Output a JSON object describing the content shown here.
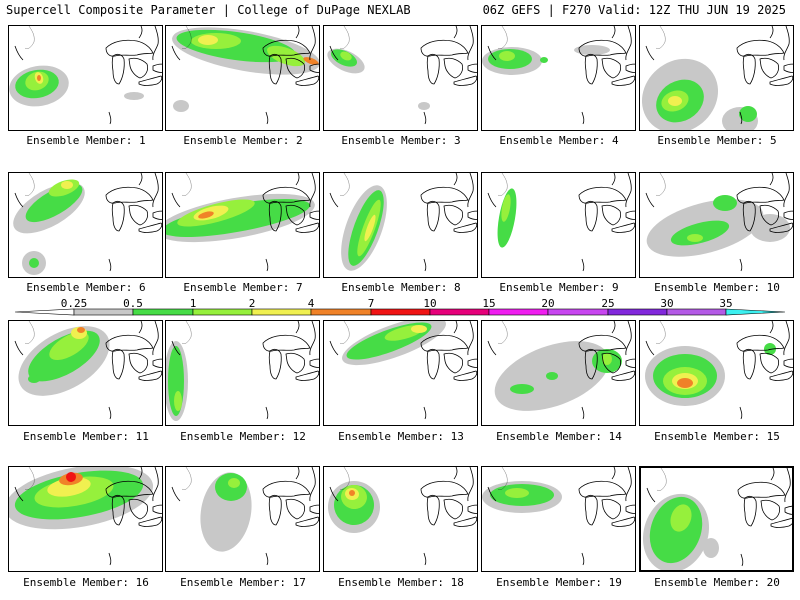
{
  "header": {
    "title_left": "Supercell Composite Parameter | College of DuPage NEXLAB",
    "title_right": "06Z GEFS | F270 Valid: 12Z THU JUN 19 2025"
  },
  "colorbar": {
    "levels": [
      "0.25",
      "0.5",
      "1",
      "2",
      "4",
      "7",
      "10",
      "15",
      "20",
      "25",
      "30",
      "35"
    ],
    "colors": [
      "#ffffff",
      "#c8c8c8",
      "#46dc46",
      "#96f03c",
      "#f0f050",
      "#f08228",
      "#f01414",
      "#e6007a",
      "#f01ef0",
      "#c846f0",
      "#8228dc",
      "#b45ae6",
      "#3cf0f0"
    ]
  },
  "legend_colors": {
    "light_gray": "#c8c8c8",
    "green": "#46dc46",
    "light_green": "#96f03c",
    "yellow": "#f0f050",
    "orange": "#f08228",
    "red": "#f01414"
  },
  "members": [
    {
      "id": 1,
      "label": "Ensemble Member: 1"
    },
    {
      "id": 2,
      "label": "Ensemble Member: 2"
    },
    {
      "id": 3,
      "label": "Ensemble Member: 3"
    },
    {
      "id": 4,
      "label": "Ensemble Member: 4"
    },
    {
      "id": 5,
      "label": "Ensemble Member: 5"
    },
    {
      "id": 6,
      "label": "Ensemble Member: 6"
    },
    {
      "id": 7,
      "label": "Ensemble Member: 7"
    },
    {
      "id": 8,
      "label": "Ensemble Member: 8"
    },
    {
      "id": 9,
      "label": "Ensemble Member: 9"
    },
    {
      "id": 10,
      "label": "Ensemble Member: 10"
    },
    {
      "id": 11,
      "label": "Ensemble Member: 11"
    },
    {
      "id": 12,
      "label": "Ensemble Member: 12"
    },
    {
      "id": 13,
      "label": "Ensemble Member: 13"
    },
    {
      "id": 14,
      "label": "Ensemble Member: 14"
    },
    {
      "id": 15,
      "label": "Ensemble Member: 15"
    },
    {
      "id": 16,
      "label": "Ensemble Member: 16"
    },
    {
      "id": 17,
      "label": "Ensemble Member: 17"
    },
    {
      "id": 18,
      "label": "Ensemble Member: 18"
    },
    {
      "id": 19,
      "label": "Ensemble Member: 19"
    },
    {
      "id": 20,
      "label": "Ensemble Member: 20",
      "selected": true
    }
  ]
}
